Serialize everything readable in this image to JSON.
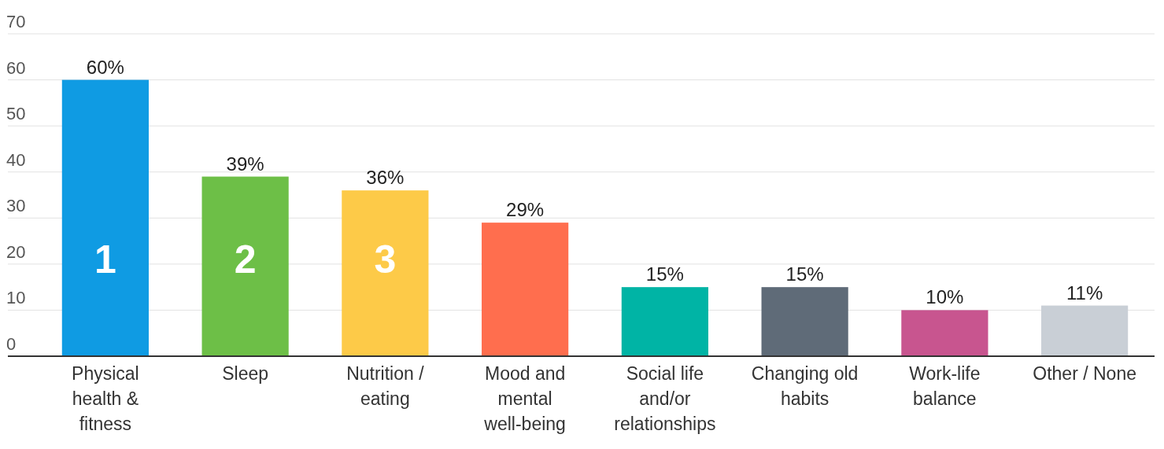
{
  "chart_data": {
    "type": "bar",
    "categories": [
      "Physical health & fitness",
      "Sleep",
      "Nutrition / eating",
      "Mood and mental well-being",
      "Social life and/or relationships",
      "Changing old habits",
      "Work-life balance",
      "Other / None"
    ],
    "values": [
      60,
      39,
      36,
      29,
      15,
      15,
      10,
      11
    ],
    "value_labels": [
      "60%",
      "39%",
      "36%",
      "29%",
      "15%",
      "15%",
      "10%",
      "11%"
    ],
    "colors": [
      "#0f9be3",
      "#6dbf47",
      "#fdca48",
      "#ff6e4e",
      "#00b4a5",
      "#5f6b78",
      "#c8558f",
      "#c9cfd6"
    ],
    "ylim": [
      0,
      70
    ],
    "yticks": [
      0,
      10,
      20,
      30,
      40,
      50,
      60,
      70
    ],
    "grid": "y",
    "annotations": [
      "1",
      "2",
      "3"
    ]
  }
}
